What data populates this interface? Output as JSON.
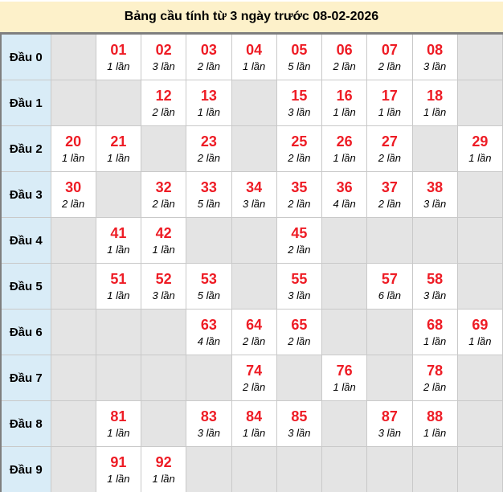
{
  "title": "Bảng cầu tính từ 3 ngày trước 08-02-2026",
  "colors": {
    "title_bg": "#fdf1ca",
    "label_bg": "#d9ecf7",
    "empty_bg": "#e4e4e4",
    "filled_bg": "#ffffff",
    "number_red": "#ee1c25",
    "grid_line": "#c9c9c9",
    "outer_border": "#7f7f7f"
  },
  "table": {
    "rows": [
      {
        "label": "Đầu 0",
        "cells": [
          null,
          {
            "num": "01",
            "count": "1 lần"
          },
          {
            "num": "02",
            "count": "3 lần"
          },
          {
            "num": "03",
            "count": "2 lần"
          },
          {
            "num": "04",
            "count": "1 lần"
          },
          {
            "num": "05",
            "count": "5 lần"
          },
          {
            "num": "06",
            "count": "2 lần"
          },
          {
            "num": "07",
            "count": "2 lần"
          },
          {
            "num": "08",
            "count": "3 lần"
          },
          null
        ]
      },
      {
        "label": "Đầu 1",
        "cells": [
          null,
          null,
          {
            "num": "12",
            "count": "2 lần"
          },
          {
            "num": "13",
            "count": "1 lần"
          },
          null,
          {
            "num": "15",
            "count": "3 lần"
          },
          {
            "num": "16",
            "count": "1 lần"
          },
          {
            "num": "17",
            "count": "1 lần"
          },
          {
            "num": "18",
            "count": "1 lần"
          },
          null
        ]
      },
      {
        "label": "Đầu 2",
        "cells": [
          {
            "num": "20",
            "count": "1 lần"
          },
          {
            "num": "21",
            "count": "1 lần"
          },
          null,
          {
            "num": "23",
            "count": "2 lần"
          },
          null,
          {
            "num": "25",
            "count": "2 lần"
          },
          {
            "num": "26",
            "count": "1 lần"
          },
          {
            "num": "27",
            "count": "2 lần"
          },
          null,
          {
            "num": "29",
            "count": "1 lần"
          }
        ]
      },
      {
        "label": "Đầu 3",
        "cells": [
          {
            "num": "30",
            "count": "2 lần"
          },
          null,
          {
            "num": "32",
            "count": "2 lần"
          },
          {
            "num": "33",
            "count": "5 lần"
          },
          {
            "num": "34",
            "count": "3 lần"
          },
          {
            "num": "35",
            "count": "2 lần"
          },
          {
            "num": "36",
            "count": "4 lần"
          },
          {
            "num": "37",
            "count": "2 lần"
          },
          {
            "num": "38",
            "count": "3 lần"
          },
          null
        ]
      },
      {
        "label": "Đầu 4",
        "cells": [
          null,
          {
            "num": "41",
            "count": "1 lần"
          },
          {
            "num": "42",
            "count": "1 lần"
          },
          null,
          null,
          {
            "num": "45",
            "count": "2 lần"
          },
          null,
          null,
          null,
          null
        ]
      },
      {
        "label": "Đầu 5",
        "cells": [
          null,
          {
            "num": "51",
            "count": "1 lần"
          },
          {
            "num": "52",
            "count": "3 lần"
          },
          {
            "num": "53",
            "count": "5 lần"
          },
          null,
          {
            "num": "55",
            "count": "3 lần"
          },
          null,
          {
            "num": "57",
            "count": "6 lần"
          },
          {
            "num": "58",
            "count": "3 lần"
          },
          null
        ]
      },
      {
        "label": "Đầu 6",
        "cells": [
          null,
          null,
          null,
          {
            "num": "63",
            "count": "4 lần"
          },
          {
            "num": "64",
            "count": "2 lần"
          },
          {
            "num": "65",
            "count": "2 lần"
          },
          null,
          null,
          {
            "num": "68",
            "count": "1 lần"
          },
          {
            "num": "69",
            "count": "1 lần"
          }
        ]
      },
      {
        "label": "Đầu 7",
        "cells": [
          null,
          null,
          null,
          null,
          {
            "num": "74",
            "count": "2 lần"
          },
          null,
          {
            "num": "76",
            "count": "1 lần"
          },
          null,
          {
            "num": "78",
            "count": "2 lần"
          },
          null
        ]
      },
      {
        "label": "Đầu 8",
        "cells": [
          null,
          {
            "num": "81",
            "count": "1 lần"
          },
          null,
          {
            "num": "83",
            "count": "3 lần"
          },
          {
            "num": "84",
            "count": "1 lần"
          },
          {
            "num": "85",
            "count": "3 lần"
          },
          null,
          {
            "num": "87",
            "count": "3 lần"
          },
          {
            "num": "88",
            "count": "1 lần"
          },
          null
        ]
      },
      {
        "label": "Đầu 9",
        "cells": [
          null,
          {
            "num": "91",
            "count": "1 lần"
          },
          {
            "num": "92",
            "count": "1 lần"
          },
          null,
          null,
          null,
          null,
          null,
          null,
          null
        ]
      }
    ]
  }
}
